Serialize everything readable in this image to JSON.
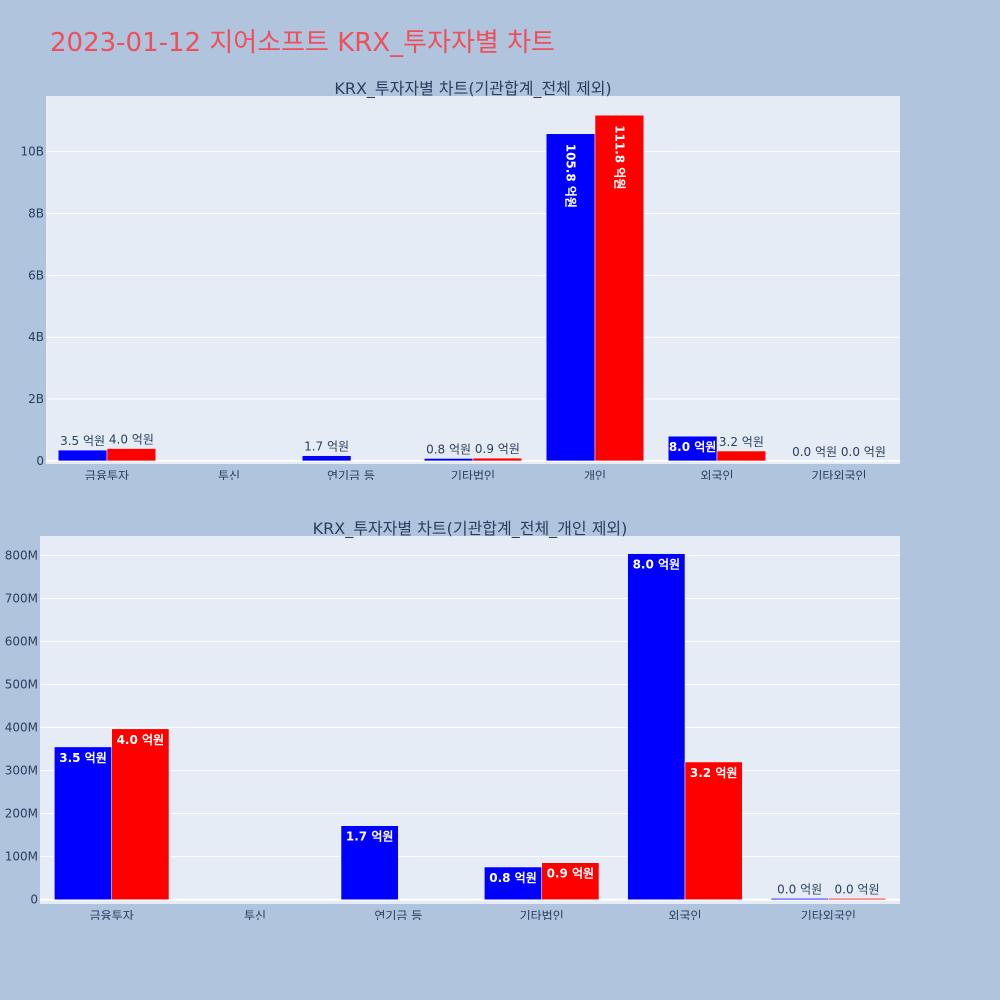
{
  "title": "2023-01-12 지어소프트 KRX_투자자별 차트",
  "colors": {
    "background": "#b0c4de",
    "plot_background": "#e5ecf6",
    "title": "#ef4f5b",
    "series_a": "#0000ff",
    "series_b": "#ff0000",
    "text": "#2a3f5f"
  },
  "chart_data": [
    {
      "type": "bar",
      "title": "KRX_투자자별 차트(기관합계_전체 제외)",
      "categories": [
        "금융투자",
        "투신",
        "연기금 등",
        "기타법인",
        "개인",
        "외국인",
        "기타외국인"
      ],
      "series": [
        {
          "values": [
            350000000,
            0,
            170000000,
            80000000,
            10580000000,
            800000000,
            2000000
          ],
          "labels": [
            "3.5 억원",
            "",
            "1.7 억원",
            "0.8 억원",
            "105.8 억원",
            "8.0 억원",
            "0.0 억원"
          ]
        },
        {
          "values": [
            400000000,
            0,
            0,
            90000000,
            11180000000,
            320000000,
            2000000
          ],
          "labels": [
            "4.0 억원",
            "",
            "",
            "0.9 억원",
            "111.8 억원",
            "3.2 억원",
            "0.0 억원"
          ]
        }
      ],
      "yticks": [
        {
          "value": 0,
          "label": "0"
        },
        {
          "value": 2000000000,
          "label": "2B"
        },
        {
          "value": 4000000000,
          "label": "4B"
        },
        {
          "value": 6000000000,
          "label": "6B"
        },
        {
          "value": 8000000000,
          "label": "8B"
        },
        {
          "value": 10000000000,
          "label": "10B"
        }
      ],
      "ylim": [
        -100000000,
        11800000000
      ]
    },
    {
      "type": "bar",
      "title": "KRX_투자자별 차트(기관합계_전체_개인 제외)",
      "categories": [
        "금융투자",
        "투신",
        "연기금 등",
        "기타법인",
        "외국인",
        "기타외국인"
      ],
      "series": [
        {
          "values": [
            355000000,
            0,
            172000000,
            76000000,
            804000000,
            3000000
          ],
          "labels": [
            "3.5 억원",
            "",
            "1.7 억원",
            "0.8 억원",
            "8.0 억원",
            "0.0 억원"
          ]
        },
        {
          "values": [
            397000000,
            0,
            0,
            86000000,
            320000000,
            3000000
          ],
          "labels": [
            "4.0 억원",
            "",
            "",
            "0.9 억원",
            "3.2 억원",
            "0.0 억원"
          ]
        }
      ],
      "yticks": [
        {
          "value": 0,
          "label": "0"
        },
        {
          "value": 100000000,
          "label": "100M"
        },
        {
          "value": 200000000,
          "label": "200M"
        },
        {
          "value": 300000000,
          "label": "300M"
        },
        {
          "value": 400000000,
          "label": "400M"
        },
        {
          "value": 500000000,
          "label": "500M"
        },
        {
          "value": 600000000,
          "label": "600M"
        },
        {
          "value": 700000000,
          "label": "700M"
        },
        {
          "value": 800000000,
          "label": "800M"
        }
      ],
      "ylim": [
        -10000000,
        845000000
      ]
    }
  ]
}
